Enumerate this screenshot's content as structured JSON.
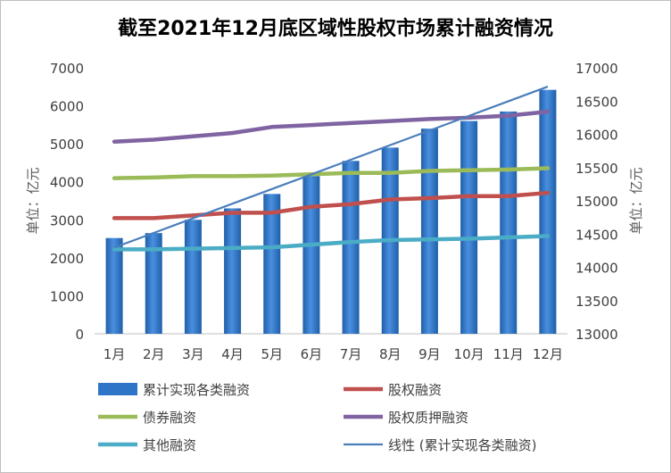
{
  "chart_data": {
    "type": "bar",
    "title": "截至2021年12月底区域性股权市场累计融资情况",
    "ylabel": "单位：亿元",
    "y2label": "单位：亿元",
    "categories": [
      "1月",
      "2月",
      "3月",
      "4月",
      "5月",
      "6月",
      "7月",
      "8月",
      "9月",
      "10月",
      "11月",
      "12月"
    ],
    "ylim": [
      0,
      7000
    ],
    "y2lim": [
      13000,
      17000
    ],
    "yticks": [
      0,
      1000,
      2000,
      3000,
      4000,
      5000,
      6000,
      7000
    ],
    "y2ticks": [
      13000,
      13500,
      14000,
      14500,
      15000,
      15500,
      16000,
      16500,
      17000
    ],
    "grid": false,
    "legend_position": "bottom",
    "series": [
      {
        "name": "累计实现各类融资",
        "type": "bar",
        "axis": "left",
        "color": "#2e75c8",
        "values": [
          2520,
          2650,
          3000,
          3300,
          3680,
          4150,
          4550,
          4900,
          5400,
          5600,
          5850,
          6420
        ]
      },
      {
        "name": "股权融资",
        "type": "line",
        "axis": "right",
        "color": "#c0504d",
        "values": [
          14740,
          14740,
          14780,
          14820,
          14820,
          14910,
          14950,
          15020,
          15040,
          15070,
          15070,
          15120
        ]
      },
      {
        "name": "债券融资",
        "type": "line",
        "axis": "right",
        "color": "#9bbb59",
        "values": [
          15340,
          15350,
          15370,
          15370,
          15380,
          15400,
          15420,
          15420,
          15450,
          15460,
          15470,
          15490
        ]
      },
      {
        "name": "股权质押融资",
        "type": "line",
        "axis": "right",
        "color": "#8064a2",
        "values": [
          15890,
          15920,
          15970,
          16020,
          16110,
          16140,
          16170,
          16200,
          16230,
          16250,
          16280,
          16340
        ]
      },
      {
        "name": "其他融资",
        "type": "line",
        "axis": "right",
        "color": "#4bacc6",
        "values": [
          14270,
          14270,
          14280,
          14290,
          14300,
          14340,
          14380,
          14410,
          14420,
          14430,
          14450,
          14470
        ]
      },
      {
        "name": "线性 (累计实现各类融资)",
        "type": "trendline",
        "axis": "left",
        "color": "#4a7ebb",
        "values": [
          2270,
          2655,
          3040,
          3425,
          3810,
          4195,
          4580,
          4965,
          5350,
          5735,
          6120,
          6505
        ]
      }
    ]
  }
}
